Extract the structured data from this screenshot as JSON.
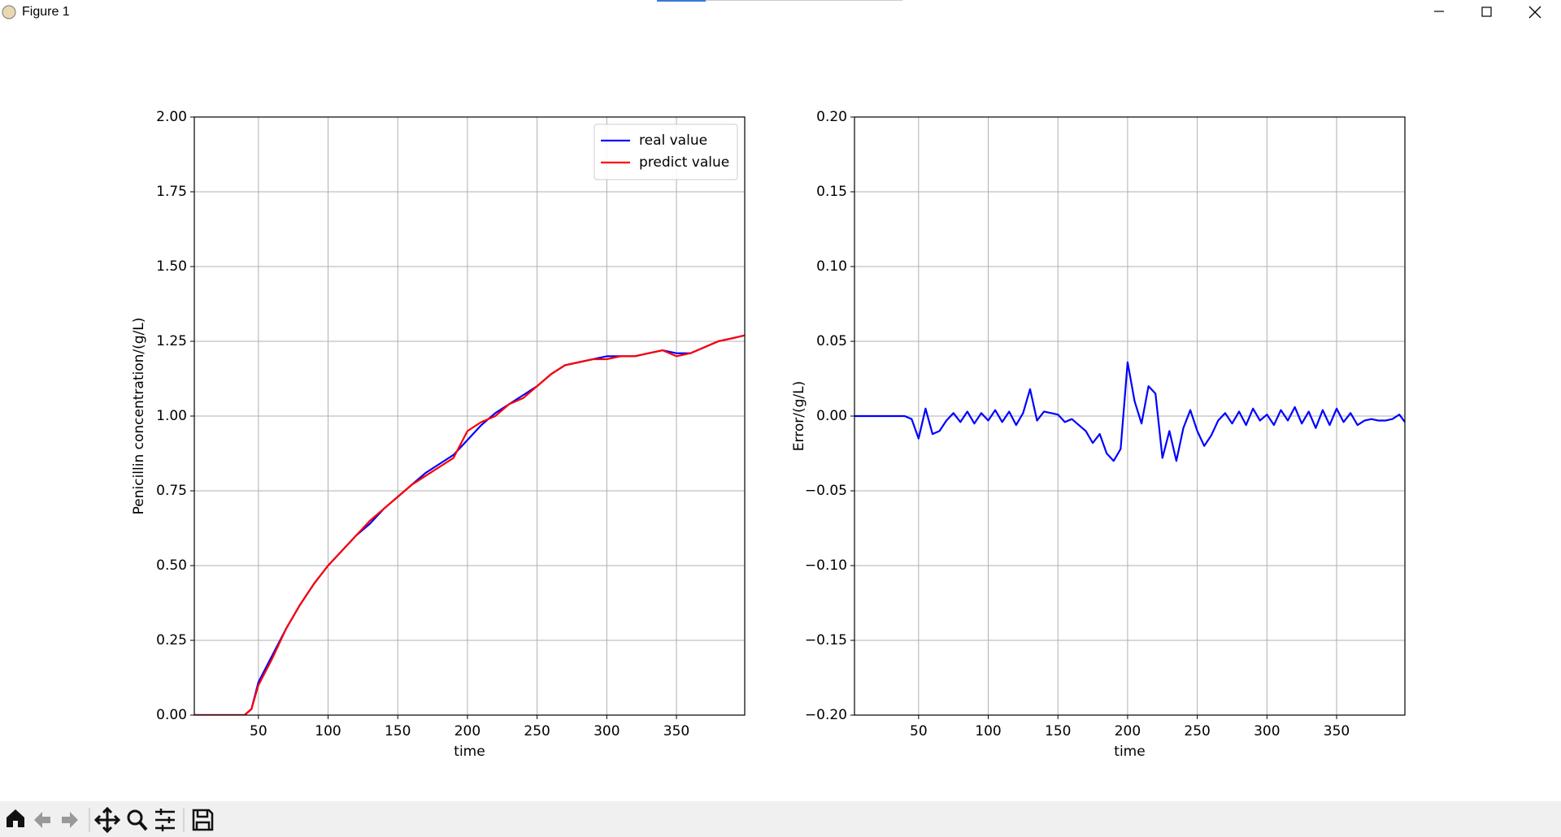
{
  "window": {
    "title": "Figure 1"
  },
  "chart_data": [
    {
      "type": "line",
      "xlabel": "time",
      "ylabel": "Penicillin concentration/(g/L)",
      "x": [
        4,
        10,
        20,
        30,
        40,
        45,
        50,
        60,
        70,
        80,
        90,
        100,
        110,
        120,
        130,
        140,
        150,
        160,
        170,
        180,
        190,
        200,
        210,
        220,
        230,
        240,
        250,
        260,
        270,
        280,
        290,
        300,
        310,
        320,
        330,
        340,
        350,
        360,
        370,
        380,
        390,
        399
      ],
      "series": [
        {
          "name": "real value",
          "color": "#0000ff",
          "values": [
            0,
            0,
            0,
            0,
            0,
            0.02,
            0.11,
            0.2,
            0.29,
            0.37,
            0.44,
            0.5,
            0.55,
            0.6,
            0.64,
            0.69,
            0.73,
            0.77,
            0.81,
            0.84,
            0.87,
            0.92,
            0.97,
            1.01,
            1.04,
            1.07,
            1.1,
            1.14,
            1.17,
            1.18,
            1.19,
            1.2,
            1.2,
            1.2,
            1.21,
            1.22,
            1.21,
            1.21,
            1.23,
            1.25,
            1.26,
            1.27
          ]
        },
        {
          "name": "predict value",
          "color": "#ff0000",
          "values": [
            0,
            0,
            0,
            0,
            0,
            0.02,
            0.1,
            0.19,
            0.29,
            0.37,
            0.44,
            0.5,
            0.55,
            0.6,
            0.65,
            0.69,
            0.73,
            0.77,
            0.8,
            0.83,
            0.86,
            0.95,
            0.98,
            1.0,
            1.04,
            1.06,
            1.1,
            1.14,
            1.17,
            1.18,
            1.19,
            1.19,
            1.2,
            1.2,
            1.21,
            1.22,
            1.2,
            1.21,
            1.23,
            1.25,
            1.26,
            1.27
          ]
        }
      ],
      "xlim": [
        4,
        399
      ],
      "xticks": [
        50,
        100,
        150,
        200,
        250,
        300,
        350
      ],
      "ylim": [
        0,
        2
      ],
      "yticks": [
        {
          "value": 0,
          "label": "0.00"
        },
        {
          "value": 0.25,
          "label": "0.25"
        },
        {
          "value": 0.5,
          "label": "0.50"
        },
        {
          "value": 0.75,
          "label": "0.75"
        },
        {
          "value": 1,
          "label": "1.00"
        },
        {
          "value": 1.25,
          "label": "1.25"
        },
        {
          "value": 1.5,
          "label": "1.50"
        },
        {
          "value": 1.75,
          "label": "1.75"
        },
        {
          "value": 2,
          "label": "2.00"
        }
      ],
      "grid": true,
      "legend": "upper right"
    },
    {
      "type": "line",
      "xlabel": "time",
      "ylabel": "Error/(g/L)",
      "x": [
        4,
        10,
        20,
        30,
        40,
        45,
        50,
        55,
        60,
        65,
        70,
        75,
        80,
        85,
        90,
        95,
        100,
        105,
        110,
        115,
        120,
        125,
        130,
        135,
        140,
        145,
        150,
        155,
        160,
        165,
        170,
        175,
        180,
        185,
        190,
        195,
        200,
        205,
        210,
        215,
        220,
        225,
        230,
        235,
        240,
        245,
        250,
        255,
        260,
        265,
        270,
        275,
        280,
        285,
        290,
        295,
        300,
        305,
        310,
        315,
        320,
        325,
        330,
        335,
        340,
        345,
        350,
        355,
        360,
        365,
        370,
        375,
        380,
        385,
        390,
        395,
        399
      ],
      "series": [
        {
          "color": "#0000ff",
          "values": [
            0,
            0,
            0,
            0,
            0,
            -0.002,
            -0.015,
            0.005,
            -0.012,
            -0.01,
            -0.003,
            0.002,
            -0.004,
            0.003,
            -0.005,
            0.002,
            -0.003,
            0.004,
            -0.004,
            0.003,
            -0.006,
            0.002,
            0.018,
            -0.003,
            0.003,
            0.002,
            0.001,
            -0.004,
            -0.002,
            -0.006,
            -0.01,
            -0.018,
            -0.012,
            -0.025,
            -0.03,
            -0.022,
            0.036,
            0.01,
            -0.005,
            0.02,
            0.015,
            -0.028,
            -0.01,
            -0.03,
            -0.008,
            0.004,
            -0.01,
            -0.02,
            -0.013,
            -0.003,
            0.002,
            -0.005,
            0.003,
            -0.006,
            0.005,
            -0.003,
            0.001,
            -0.006,
            0.004,
            -0.003,
            0.006,
            -0.005,
            0.003,
            -0.008,
            0.004,
            -0.006,
            0.005,
            -0.004,
            0.002,
            -0.006,
            -0.003,
            -0.002,
            -0.003,
            -0.003,
            -0.002,
            0.001,
            -0.004
          ]
        }
      ],
      "xlim": [
        4,
        399
      ],
      "xticks": [
        50,
        100,
        150,
        200,
        250,
        300,
        350
      ],
      "ylim": [
        -0.2,
        0.2
      ],
      "yticks": [
        {
          "value": -0.2,
          "label": "−0.20"
        },
        {
          "value": -0.15,
          "label": "−0.15"
        },
        {
          "value": -0.1,
          "label": "−0.10"
        },
        {
          "value": -0.05,
          "label": "−0.05"
        },
        {
          "value": 0,
          "label": "0.00"
        },
        {
          "value": 0.05,
          "label": "0.05"
        },
        {
          "value": 0.1,
          "label": "0.10"
        },
        {
          "value": 0.15,
          "label": "0.15"
        },
        {
          "value": 0.2,
          "label": "0.20"
        }
      ],
      "grid": true
    }
  ]
}
